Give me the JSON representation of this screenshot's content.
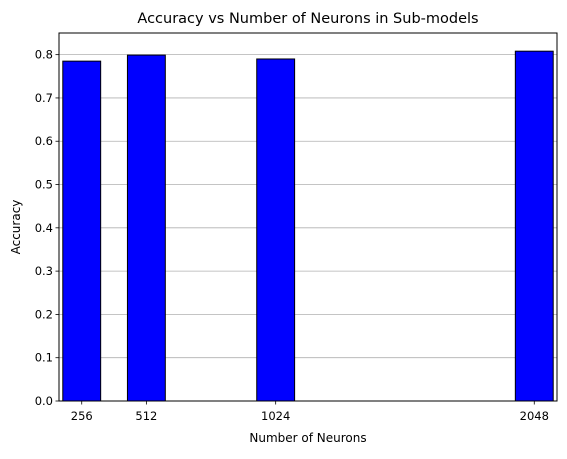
{
  "chart_data": {
    "type": "bar",
    "title": "Accuracy vs Number of Neurons in Sub-models",
    "xlabel": "Number of Neurons",
    "ylabel": "Accuracy",
    "x": [
      256,
      512,
      1024,
      2048
    ],
    "values": [
      0.785,
      0.799,
      0.79,
      0.808
    ],
    "xlim": [
      166,
      2138
    ],
    "ylim": [
      0,
      0.85
    ],
    "yticks": [
      0.0,
      0.1,
      0.2,
      0.3,
      0.4,
      0.5,
      0.6,
      0.7,
      0.8
    ],
    "ytick_labels": [
      "0.0",
      "0.1",
      "0.2",
      "0.3",
      "0.4",
      "0.5",
      "0.6",
      "0.7",
      "0.8"
    ],
    "xtick_labels": [
      "256",
      "512",
      "1024",
      "2048"
    ],
    "bar_width": 150,
    "bar_color": "#0000ff",
    "bar_edge_color": "#000000",
    "grid": "y-axis only",
    "grid_color": "#b0b0b0"
  }
}
